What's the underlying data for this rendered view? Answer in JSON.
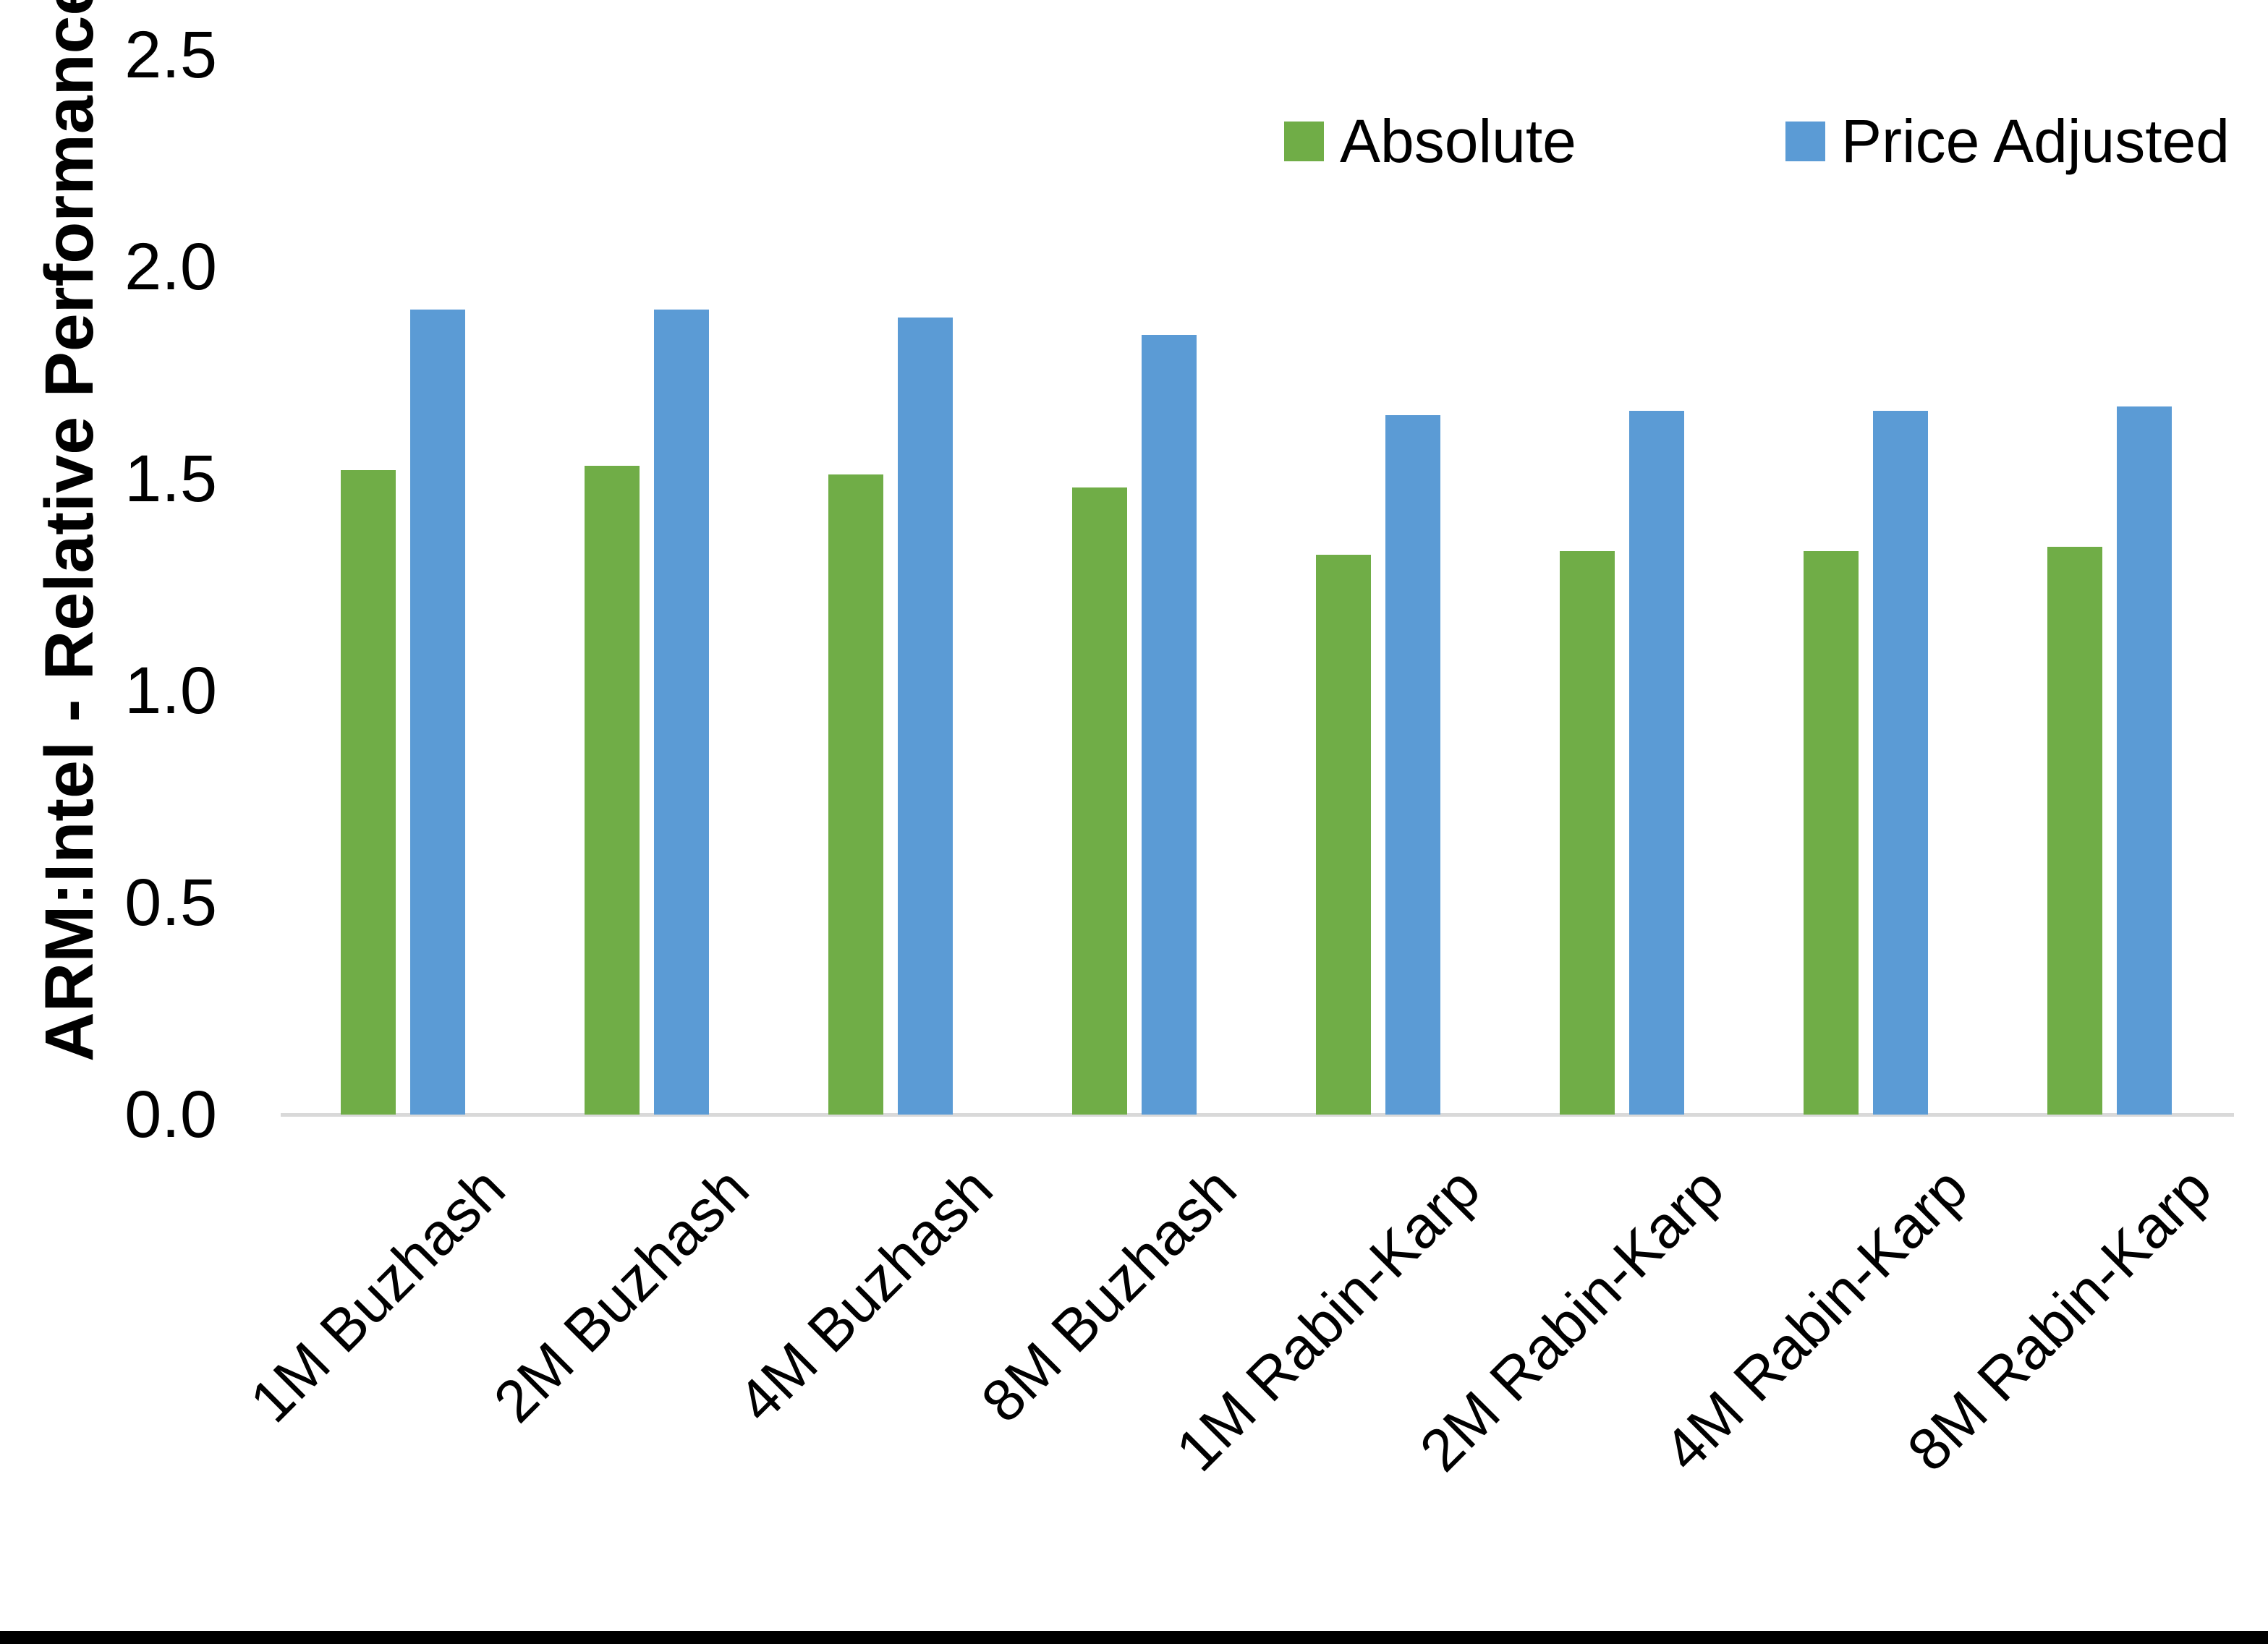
{
  "chart_data": {
    "type": "bar",
    "title": "",
    "xlabel": "",
    "ylabel": "ARM:Intel - Relative Performance",
    "categories": [
      "1M Buzhash",
      "2M Buzhash",
      "4M Buzhash",
      "8M Buzhash",
      "1M Rabin-Karp",
      "2M Rabin-Karp",
      "4M Rabin-Karp",
      "8M Rabin-Karp"
    ],
    "series": [
      {
        "name": "Absolute",
        "color": "#70AD47",
        "values": [
          1.52,
          1.53,
          1.51,
          1.48,
          1.32,
          1.33,
          1.33,
          1.34
        ]
      },
      {
        "name": "Price Adjusted",
        "color": "#5B9BD5",
        "values": [
          1.9,
          1.9,
          1.88,
          1.84,
          1.65,
          1.66,
          1.66,
          1.67
        ]
      }
    ],
    "ylim": [
      0.0,
      2.5
    ],
    "yticks": [
      "0.0",
      "0.5",
      "1.0",
      "1.5",
      "2.0",
      "2.5"
    ],
    "grid": false,
    "legend_position": "top-right",
    "axis_line_color": "#D9D9D9",
    "text_color": "#000000"
  }
}
